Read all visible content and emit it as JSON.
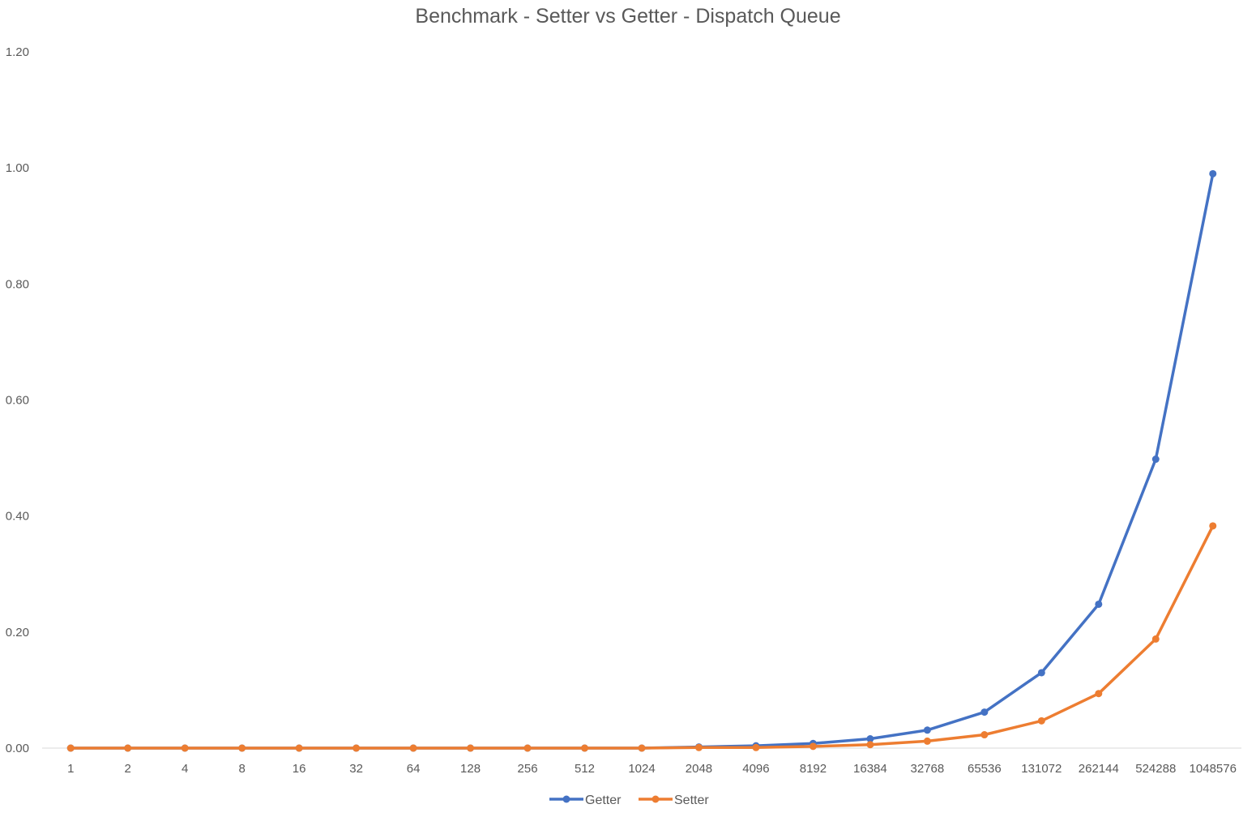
{
  "chart_data": {
    "type": "line",
    "title": "Benchmark - Setter vs Getter - Dispatch Queue",
    "xlabel": "",
    "ylabel": "",
    "categories": [
      "1",
      "2",
      "4",
      "8",
      "16",
      "32",
      "64",
      "128",
      "256",
      "512",
      "1024",
      "2048",
      "4096",
      "8192",
      "16384",
      "32768",
      "65536",
      "131072",
      "262144",
      "524288",
      "1048576"
    ],
    "ylim": [
      0,
      1.2
    ],
    "yticks": [
      "0.00",
      "0.20",
      "0.40",
      "0.60",
      "0.80",
      "1.00",
      "1.20"
    ],
    "grid": false,
    "legend_position": "bottom",
    "series": [
      {
        "name": "Getter",
        "color": "#4472C4",
        "values": [
          0.0,
          0.0,
          0.0,
          0.0,
          0.0,
          0.0,
          0.0,
          0.0,
          0.0,
          0.0,
          0.0,
          0.002,
          0.004,
          0.008,
          0.016,
          0.031,
          0.062,
          0.13,
          0.248,
          0.498,
          0.99
        ]
      },
      {
        "name": "Setter",
        "color": "#ED7D31",
        "values": [
          0.0,
          0.0,
          0.0,
          0.0,
          0.0,
          0.0,
          0.0,
          0.0,
          0.0,
          0.0,
          0.0,
          0.001,
          0.001,
          0.003,
          0.006,
          0.012,
          0.023,
          0.047,
          0.094,
          0.188,
          0.383
        ]
      }
    ]
  }
}
